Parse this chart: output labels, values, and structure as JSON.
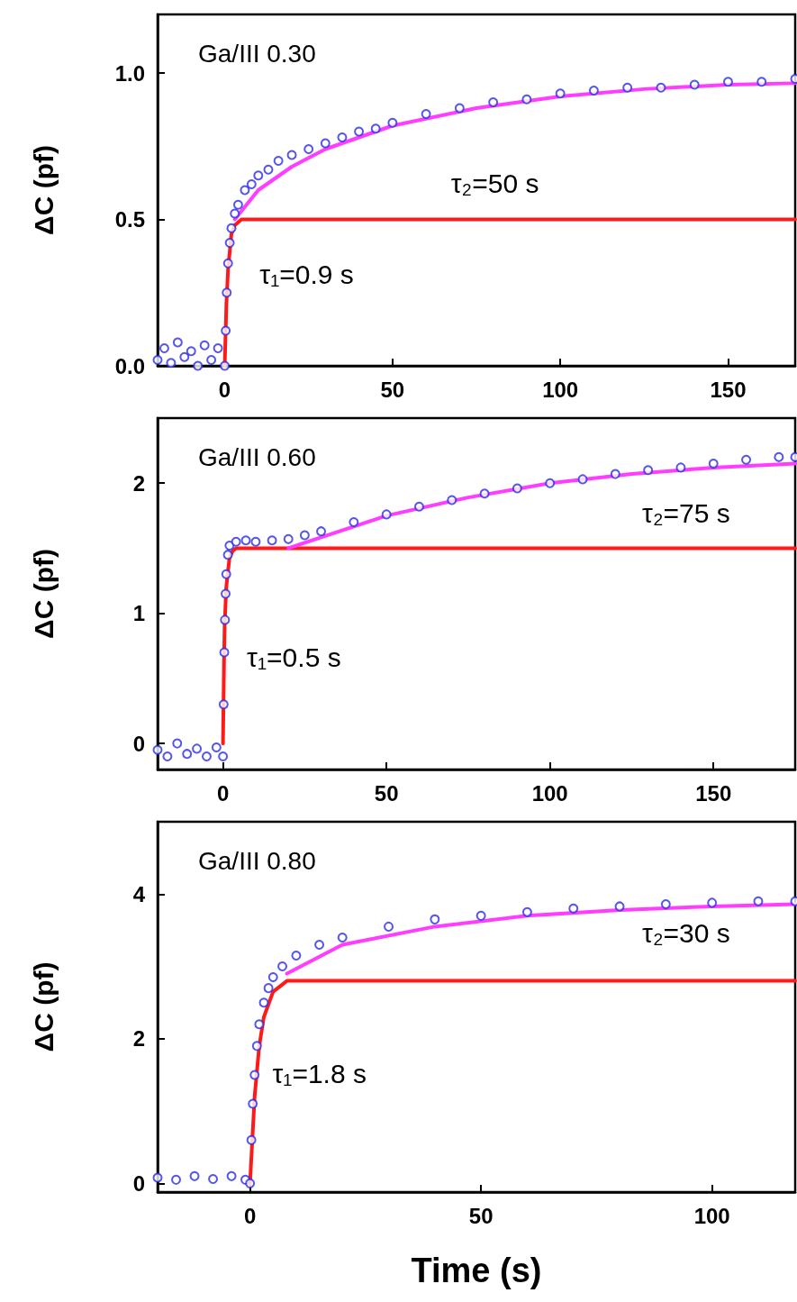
{
  "chart_data": [
    {
      "type": "line",
      "title": "Ga/III 0.30",
      "ylabel": "ΔC (pf)",
      "xlim": [
        -20,
        170
      ],
      "xticks": [
        0,
        50,
        100,
        150
      ],
      "ylim": [
        0,
        1.2
      ],
      "yticks": [
        {
          "value": 0,
          "label": "0.0"
        },
        {
          "value": 0.5,
          "label": "0.5"
        },
        {
          "value": 1,
          "label": "1.0"
        }
      ],
      "grid": false,
      "annotations": [
        "τ₂=50 s",
        "τ₁=0.9 s"
      ],
      "series": [
        {
          "type": "scatter",
          "color": "#2a2ae8",
          "x": [
            -20,
            -18,
            -16,
            -14,
            -12,
            -10,
            -8,
            -6,
            -4,
            -2,
            0,
            0.3,
            0.6,
            1,
            1.5,
            2,
            3,
            4,
            6,
            8,
            10,
            13,
            16,
            20,
            25,
            30,
            35,
            40,
            45,
            50,
            60,
            70,
            80,
            90,
            100,
            110,
            120,
            130,
            140,
            150,
            160,
            170
          ],
          "values": [
            0.02,
            0.06,
            0.01,
            0.08,
            0.03,
            0.05,
            0,
            0.07,
            0.02,
            0.06,
            0,
            0.12,
            0.25,
            0.35,
            0.42,
            0.47,
            0.52,
            0.55,
            0.6,
            0.62,
            0.65,
            0.67,
            0.7,
            0.72,
            0.74,
            0.76,
            0.78,
            0.8,
            0.81,
            0.83,
            0.86,
            0.88,
            0.9,
            0.91,
            0.93,
            0.94,
            0.95,
            0.95,
            0.96,
            0.97,
            0.97,
            0.98
          ]
        },
        {
          "color": "#ff1a1a",
          "x": [
            0,
            0.5,
            1,
            2,
            3,
            4,
            5,
            170
          ],
          "values": [
            0,
            0.21,
            0.33,
            0.45,
            0.48,
            0.49,
            0.5,
            0.5
          ]
        },
        {
          "color": "#ff3cff",
          "x": [
            3,
            10,
            20,
            30,
            40,
            50,
            75,
            100,
            125,
            150,
            170
          ],
          "values": [
            0.5,
            0.6,
            0.68,
            0.74,
            0.78,
            0.82,
            0.88,
            0.92,
            0.945,
            0.96,
            0.965
          ]
        }
      ]
    },
    {
      "type": "line",
      "title": "Ga/III 0.60",
      "ylabel": "ΔC (pf)",
      "xlim": [
        -20,
        175
      ],
      "xticks": [
        0,
        50,
        100,
        150
      ],
      "ylim": [
        -0.2,
        2.5
      ],
      "yticks": [
        0,
        1,
        2
      ],
      "grid": false,
      "annotations": [
        "τ₂=75 s",
        "τ₁=0.5 s"
      ],
      "series": [
        {
          "type": "scatter",
          "color": "#2a2ae8",
          "x": [
            -20,
            -17,
            -14,
            -11,
            -8,
            -5,
            -2,
            0,
            0.2,
            0.4,
            0.6,
            0.8,
            1,
            1.5,
            2,
            4,
            7,
            10,
            15,
            20,
            25,
            30,
            40,
            50,
            60,
            70,
            80,
            90,
            100,
            110,
            120,
            130,
            140,
            150,
            160,
            170,
            175
          ],
          "values": [
            -0.05,
            -0.1,
            0,
            -0.08,
            -0.04,
            -0.1,
            -0.03,
            -0.1,
            0.3,
            0.7,
            0.95,
            1.15,
            1.3,
            1.45,
            1.52,
            1.55,
            1.56,
            1.55,
            1.56,
            1.57,
            1.6,
            1.63,
            1.7,
            1.76,
            1.82,
            1.87,
            1.92,
            1.96,
            2,
            2.03,
            2.07,
            2.1,
            2.12,
            2.15,
            2.18,
            2.2,
            2.2
          ]
        },
        {
          "color": "#ff1a1a",
          "x": [
            0,
            0.3,
            0.5,
            1,
            2,
            3,
            4,
            175
          ],
          "values": [
            0,
            0.6,
            0.9,
            1.2,
            1.43,
            1.48,
            1.5,
            1.5
          ]
        },
        {
          "color": "#ff3cff",
          "x": [
            20,
            50,
            75,
            100,
            125,
            150,
            175
          ],
          "values": [
            1.5,
            1.75,
            1.89,
            2,
            2.07,
            2.12,
            2.15
          ]
        }
      ]
    },
    {
      "type": "line",
      "title": "Ga/III 0.80",
      "xlabel": "Time (s)",
      "ylabel": "ΔC (pf)",
      "xlim": [
        -20,
        118
      ],
      "xticks": [
        0,
        50,
        100
      ],
      "ylim": [
        -0.12,
        5
      ],
      "yticks": [
        0,
        2,
        4
      ],
      "grid": false,
      "annotations": [
        "τ₂=30 s",
        "τ₁=1.8 s"
      ],
      "series": [
        {
          "type": "scatter",
          "color": "#2a2ae8",
          "x": [
            -20,
            -16,
            -12,
            -8,
            -4,
            -1,
            0,
            0.3,
            0.6,
            1,
            1.5,
            2,
            3,
            4,
            5,
            7,
            10,
            15,
            20,
            30,
            40,
            50,
            60,
            70,
            80,
            90,
            100,
            110,
            118
          ],
          "values": [
            0.08,
            0.05,
            0.1,
            0.06,
            0.1,
            0.05,
            0,
            0.6,
            1.1,
            1.5,
            1.9,
            2.2,
            2.5,
            2.7,
            2.85,
            3,
            3.15,
            3.3,
            3.4,
            3.55,
            3.65,
            3.7,
            3.75,
            3.8,
            3.83,
            3.86,
            3.88,
            3.9,
            3.9
          ]
        },
        {
          "color": "#ff1a1a",
          "x": [
            0,
            1,
            2,
            3,
            5,
            8,
            118
          ],
          "values": [
            0,
            1.2,
            1.9,
            2.3,
            2.65,
            2.8,
            2.8
          ]
        },
        {
          "color": "#ff3cff",
          "x": [
            8,
            20,
            40,
            60,
            80,
            100,
            118
          ],
          "values": [
            2.9,
            3.3,
            3.55,
            3.7,
            3.78,
            3.83,
            3.86
          ]
        }
      ]
    }
  ]
}
